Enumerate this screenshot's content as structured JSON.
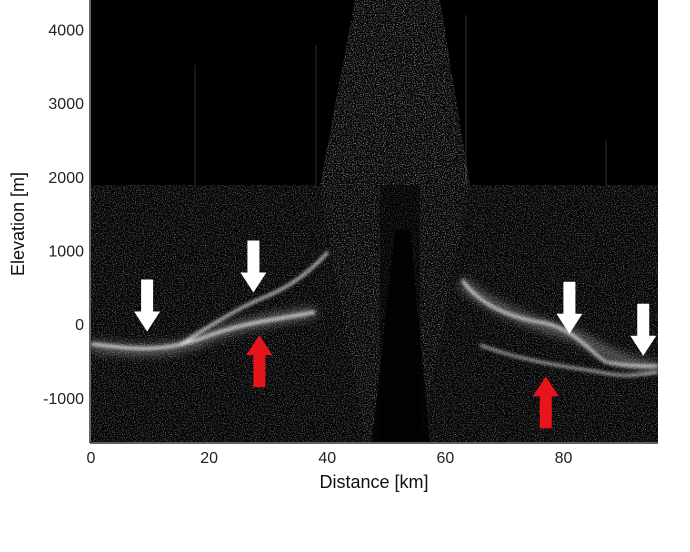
{
  "figure": {
    "xlabel": "Distance [km]",
    "ylabel": "Elevation [m]",
    "xticks": [
      "0",
      "20",
      "40",
      "60",
      "80"
    ],
    "yticks": [
      "4000",
      "3000",
      "2000",
      "1000",
      "0",
      "-1000"
    ],
    "xlim": [
      0,
      96
    ],
    "ylim": [
      -1600,
      4400
    ],
    "colors": {
      "background": "#000000",
      "speckle": "#ffffff",
      "arrow_white": "#ffffff",
      "arrow_red": "#e8141b"
    },
    "arrows": {
      "white": [
        {
          "distance_km": 9.5,
          "elevation_m": -100,
          "direction": "down"
        },
        {
          "distance_km": 27.5,
          "elevation_m": 430,
          "direction": "down"
        },
        {
          "distance_km": 81,
          "elevation_m": -130,
          "direction": "down"
        },
        {
          "distance_km": 93.5,
          "elevation_m": -430,
          "direction": "down"
        }
      ],
      "red": [
        {
          "distance_km": 28.5,
          "elevation_m": -150,
          "direction": "up"
        },
        {
          "distance_km": 77,
          "elevation_m": -710,
          "direction": "up"
        }
      ]
    }
  }
}
